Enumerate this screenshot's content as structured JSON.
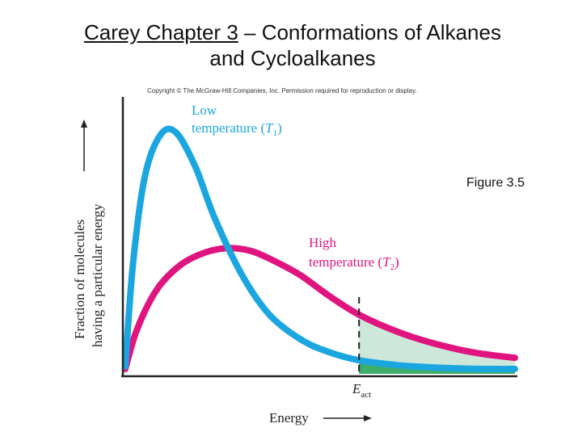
{
  "slide": {
    "title_underlined": "Carey Chapter 3",
    "title_rest_line1": " – Conformations of Alkanes",
    "title_line2": "and Cycloalkanes",
    "copyright": "Copyright © The McGraw-Hill Companies, Inc. Permission required for reproduction or display.",
    "figure_label": "Figure 3.5"
  },
  "chart_data": {
    "type": "line",
    "xlabel": "Energy",
    "ylabel_line1": "Fraction of molecules",
    "ylabel_line2": "having a particular energy",
    "activation_label": "E",
    "activation_subscript": "act",
    "activation_x": 0.6,
    "xlim": [
      0,
      1
    ],
    "ylim": [
      0,
      1
    ],
    "grid": false,
    "series": [
      {
        "name": "Low temperature (T1)",
        "label_line1": "Low",
        "label_line2": "temperature (",
        "label_symbol": "T",
        "label_sub": "1",
        "label_close": ")",
        "color": "#1ba6e0",
        "x": [
          0,
          0.02,
          0.05,
          0.09,
          0.13,
          0.18,
          0.23,
          0.3,
          0.37,
          0.45,
          0.52,
          0.6,
          0.7,
          0.8,
          0.9,
          1.0
        ],
        "y": [
          0.03,
          0.45,
          0.8,
          0.97,
          0.98,
          0.84,
          0.63,
          0.4,
          0.24,
          0.14,
          0.09,
          0.055,
          0.035,
          0.025,
          0.02,
          0.02
        ]
      },
      {
        "name": "High temperature (T2)",
        "label_line1": "High",
        "label_line2": "temperature (",
        "label_symbol": "T",
        "label_sub": "2",
        "label_close": ")",
        "color": "#e0147f",
        "x": [
          0,
          0.03,
          0.08,
          0.14,
          0.2,
          0.26,
          0.32,
          0.38,
          0.45,
          0.52,
          0.6,
          0.7,
          0.8,
          0.9,
          1.0
        ],
        "y": [
          0.02,
          0.18,
          0.34,
          0.44,
          0.49,
          0.51,
          0.5,
          0.46,
          0.4,
          0.32,
          0.24,
          0.17,
          0.12,
          0.085,
          0.065
        ]
      }
    ],
    "shaded_regions": [
      {
        "description": "area under T2 beyond activation energy",
        "color": "#cde8da"
      },
      {
        "description": "area under T1 beyond activation energy",
        "color": "#3fae6a"
      }
    ]
  }
}
